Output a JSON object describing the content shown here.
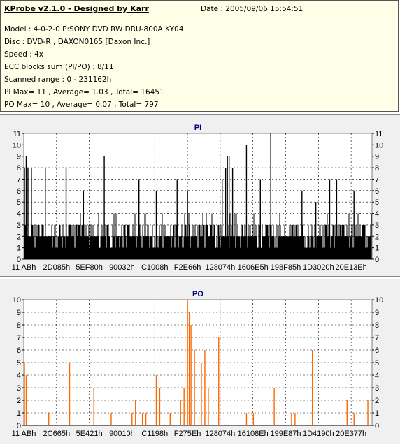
{
  "header": {
    "title": "KProbe v2.1.0 - Designed by Karr",
    "date": "Date : 2005/09/06 15:54:51",
    "lines": [
      "Model : 4-0-2-0 P:SONY    DVD RW DRU-800A  KY04",
      "Disc : DVD-R , DAXON0165 [Daxon Inc.]",
      "Speed : 4x",
      "ECC blocks sum (PI/PO) : 8/11",
      "Scanned range : 0 - 231162h",
      "PI Max= 11 , Average= 1.03 , Total= 16451",
      "PO Max= 10 , Average= 0.07 , Total= 797"
    ]
  },
  "colors": {
    "pi_bars": "#000000",
    "po_bars": "#ff6600",
    "plot_bg": "#ffffff",
    "grid": "#000000"
  },
  "chart_data": [
    {
      "type": "bar",
      "title": "PI",
      "ylim": [
        0,
        11
      ],
      "yticks": [
        "0",
        "1",
        "2",
        "3",
        "4",
        "5",
        "6",
        "7",
        "8",
        "9",
        "10",
        "11"
      ],
      "xticks": [
        "11 ABh",
        "2D085h",
        "5EF80h",
        "90032h",
        "C1008h",
        "F2E66h",
        "128074h",
        "1606E5h",
        "198F85h",
        "1D3020h",
        "20E13Eh"
      ],
      "baseline": 2,
      "spikes": [
        {
          "x": 0.0,
          "v": 8
        },
        {
          "x": 0.005,
          "v": 9
        },
        {
          "x": 0.01,
          "v": 8
        },
        {
          "x": 0.02,
          "v": 8
        },
        {
          "x": 0.06,
          "v": 8
        },
        {
          "x": 0.12,
          "v": 8
        },
        {
          "x": 0.17,
          "v": 6
        },
        {
          "x": 0.23,
          "v": 9
        },
        {
          "x": 0.33,
          "v": 7
        },
        {
          "x": 0.38,
          "v": 6
        },
        {
          "x": 0.44,
          "v": 7
        },
        {
          "x": 0.47,
          "v": 6
        },
        {
          "x": 0.57,
          "v": 7
        },
        {
          "x": 0.58,
          "v": 8
        },
        {
          "x": 0.585,
          "v": 9
        },
        {
          "x": 0.59,
          "v": 9
        },
        {
          "x": 0.6,
          "v": 8
        },
        {
          "x": 0.64,
          "v": 10
        },
        {
          "x": 0.68,
          "v": 7
        },
        {
          "x": 0.71,
          "v": 11
        },
        {
          "x": 0.8,
          "v": 6
        },
        {
          "x": 0.84,
          "v": 5
        },
        {
          "x": 0.88,
          "v": 7
        },
        {
          "x": 0.9,
          "v": 7
        },
        {
          "x": 0.95,
          "v": 6
        }
      ]
    },
    {
      "type": "bar",
      "title": "PO",
      "ylim": [
        0,
        10
      ],
      "yticks": [
        "0",
        "1",
        "2",
        "3",
        "4",
        "5",
        "6",
        "7",
        "8",
        "9",
        "10"
      ],
      "xticks": [
        "11 ABh",
        "2C665h",
        "5E421h",
        "90010h",
        "C1198h",
        "F275Eh",
        "128074h",
        "16108Eh",
        "199E87h",
        "1D4190h",
        "20E377h"
      ],
      "spikes": [
        {
          "x": 0.0,
          "v": 5
        },
        {
          "x": 0.005,
          "v": 4
        },
        {
          "x": 0.07,
          "v": 1
        },
        {
          "x": 0.13,
          "v": 5
        },
        {
          "x": 0.2,
          "v": 3
        },
        {
          "x": 0.25,
          "v": 1
        },
        {
          "x": 0.31,
          "v": 1
        },
        {
          "x": 0.32,
          "v": 2
        },
        {
          "x": 0.34,
          "v": 1
        },
        {
          "x": 0.35,
          "v": 1
        },
        {
          "x": 0.38,
          "v": 4
        },
        {
          "x": 0.39,
          "v": 3
        },
        {
          "x": 0.42,
          "v": 1
        },
        {
          "x": 0.45,
          "v": 2
        },
        {
          "x": 0.46,
          "v": 3
        },
        {
          "x": 0.47,
          "v": 10
        },
        {
          "x": 0.475,
          "v": 9
        },
        {
          "x": 0.48,
          "v": 8
        },
        {
          "x": 0.49,
          "v": 6
        },
        {
          "x": 0.51,
          "v": 5
        },
        {
          "x": 0.52,
          "v": 6
        },
        {
          "x": 0.53,
          "v": 3
        },
        {
          "x": 0.56,
          "v": 7
        },
        {
          "x": 0.64,
          "v": 1
        },
        {
          "x": 0.66,
          "v": 1
        },
        {
          "x": 0.72,
          "v": 3
        },
        {
          "x": 0.77,
          "v": 1
        },
        {
          "x": 0.78,
          "v": 1
        },
        {
          "x": 0.83,
          "v": 6
        },
        {
          "x": 0.93,
          "v": 2
        },
        {
          "x": 0.95,
          "v": 1
        },
        {
          "x": 0.99,
          "v": 2
        }
      ]
    }
  ]
}
